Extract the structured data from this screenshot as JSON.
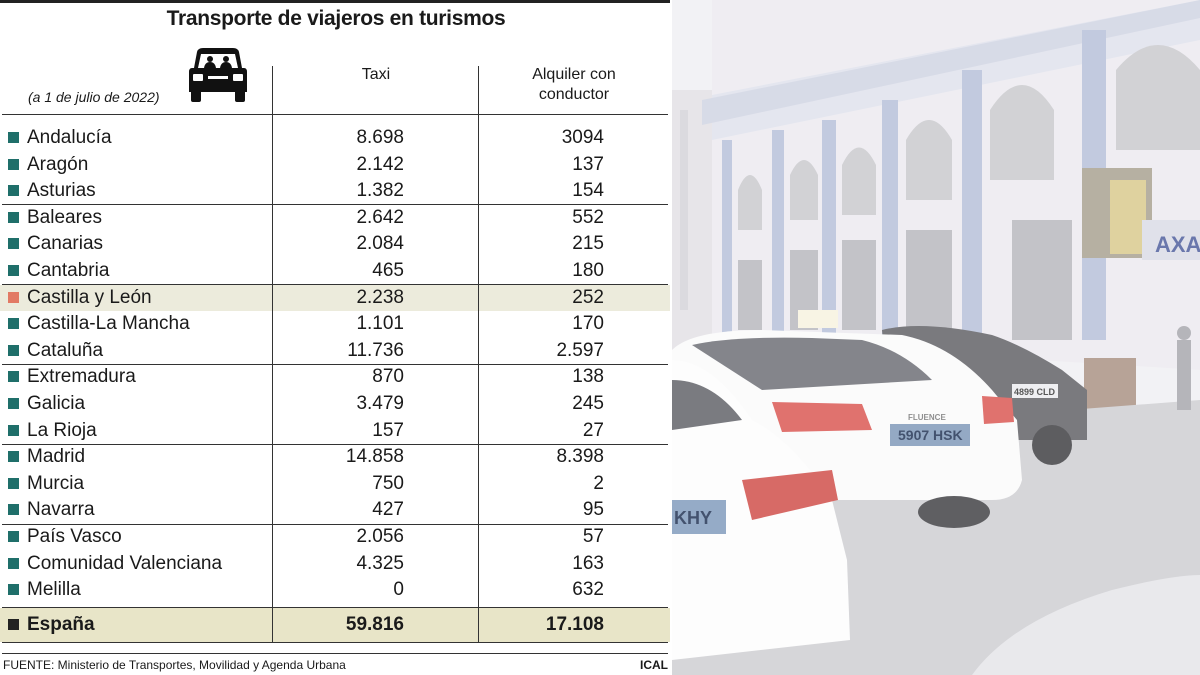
{
  "title": "Transporte de viajeros en turismos",
  "date_note": "(a 1 de julio de 2022)",
  "icon": "car-icon",
  "columns": {
    "taxi": "Taxi",
    "alquiler_line1": "Alquiler con",
    "alquiler_line2": "conductor"
  },
  "colors": {
    "bullet": "#1f6f6a",
    "highlight_bullet": "#e27a64",
    "highlight_row": "#ecebdc",
    "total_row": "#e8e5c8"
  },
  "chart_data": {
    "type": "table",
    "title": "Transporte de viajeros en turismos",
    "columns": [
      "Taxi",
      "Alquiler con conductor"
    ],
    "rows": [
      {
        "region": "Andalucía",
        "taxi": "8.698",
        "alquiler": "3094"
      },
      {
        "region": "Aragón",
        "taxi": "2.142",
        "alquiler": "137"
      },
      {
        "region": "Asturias",
        "taxi": "1.382",
        "alquiler": "154"
      },
      {
        "region": "Baleares",
        "taxi": "2.642",
        "alquiler": "552"
      },
      {
        "region": "Canarias",
        "taxi": "2.084",
        "alquiler": "215"
      },
      {
        "region": "Cantabria",
        "taxi": "465",
        "alquiler": "180"
      },
      {
        "region": "Castilla y León",
        "taxi": "2.238",
        "alquiler": "252",
        "highlight": true
      },
      {
        "region": "Castilla-La Mancha",
        "taxi": "1.101",
        "alquiler": "170"
      },
      {
        "region": "Cataluña",
        "taxi": "11.736",
        "alquiler": "2.597"
      },
      {
        "region": "Extremadura",
        "taxi": "870",
        "alquiler": "138"
      },
      {
        "region": "Galicia",
        "taxi": "3.479",
        "alquiler": "245"
      },
      {
        "region": "La Rioja",
        "taxi": "157",
        "alquiler": "27"
      },
      {
        "region": "Madrid",
        "taxi": "14.858",
        "alquiler": "8.398"
      },
      {
        "region": "Murcia",
        "taxi": "750",
        "alquiler": "2"
      },
      {
        "region": "Navarra",
        "taxi": "427",
        "alquiler": "95"
      },
      {
        "region": "País Vasco",
        "taxi": "2.056",
        "alquiler": "57"
      },
      {
        "region": "Comunidad Valenciana",
        "taxi": "4.325",
        "alquiler": "163"
      },
      {
        "region": "Melilla",
        "taxi": "0",
        "alquiler": "632"
      }
    ],
    "total": {
      "region": "España",
      "taxi": "59.816",
      "alquiler": "17.108"
    }
  },
  "source": "FUENTE: Ministerio de Transportes, Movilidad y Agenda Urbana",
  "credit": "ICAL",
  "photo": {
    "sign_text": "AXA",
    "plate_front": "5907 HSK",
    "plate_back": "KHY",
    "plate_right": "4899 CLD",
    "car_badge": "FLUENCE"
  }
}
